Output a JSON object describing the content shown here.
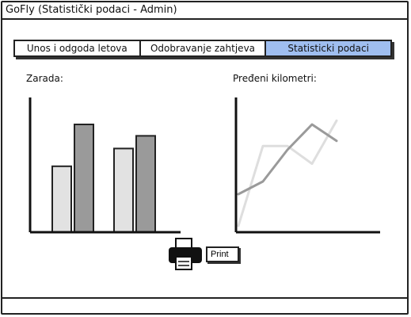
{
  "window": {
    "title": "GoFly (Statistički podaci - Admin)"
  },
  "tabs": [
    {
      "label": "Unos i odgoda letova",
      "active": false
    },
    {
      "label": "Odobravanje zahtjeva",
      "active": false
    },
    {
      "label": "Statisticki podaci",
      "active": true
    }
  ],
  "colors": {
    "active_tab": "#9fbef0",
    "bar_light": "#e2e2e2",
    "bar_dark": "#9a9a9a",
    "line_dark": "#9a9a9a",
    "line_light": "#dedede"
  },
  "earnings": {
    "label": "Zarada:"
  },
  "distance": {
    "label": "Pređeni kilometri:"
  },
  "chart_data": [
    {
      "type": "bar",
      "title": "Zarada:",
      "xlabel": "",
      "ylabel": "",
      "categories": [
        "",
        ""
      ],
      "series": [
        {
          "values": [
            5.2,
            6.6
          ]
        },
        {
          "values": [
            8.5,
            7.6
          ]
        }
      ],
      "ylim": [
        0,
        10
      ],
      "grid": false
    },
    {
      "type": "line",
      "title": "Pređeni kilometri:",
      "xlabel": "",
      "ylabel": "",
      "x": [
        0,
        1,
        2,
        3,
        4,
        5
      ],
      "series": [
        {
          "values": [
            3.0,
            4.0,
            6.5,
            8.5,
            7.2,
            null
          ]
        },
        {
          "values": [
            0.5,
            6.8,
            6.8,
            5.4,
            8.8,
            null
          ]
        }
      ],
      "ylim": [
        0,
        10
      ],
      "grid": false
    }
  ],
  "print": {
    "label": "Print"
  }
}
